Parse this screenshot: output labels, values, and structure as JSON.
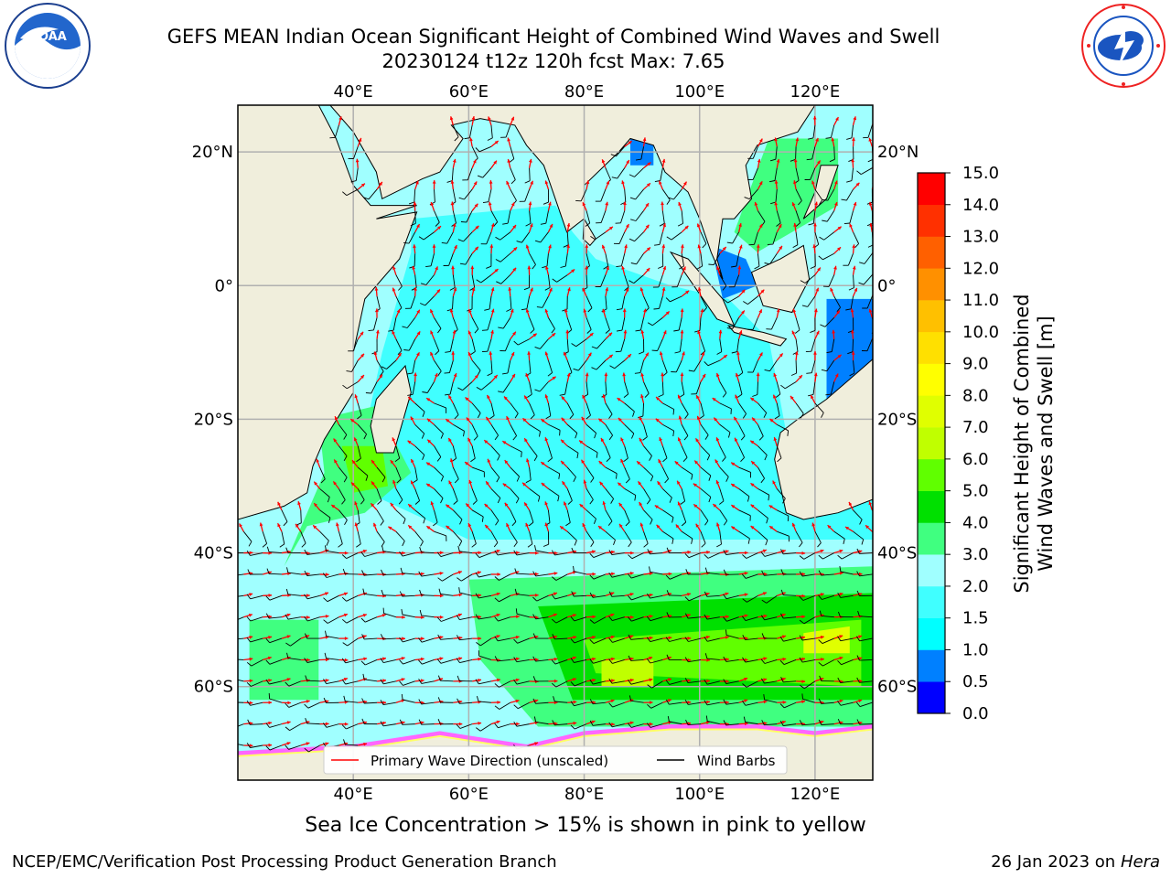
{
  "title": {
    "line1": "GEFS MEAN Indian Ocean Significant Height of Combined Wind Waves and Swell",
    "line2": "20230124 t12z 120h fcst   Max: 7.65"
  },
  "map": {
    "lon_range": [
      20,
      130
    ],
    "lat_range": [
      -74,
      27
    ],
    "lon_ticks": [
      {
        "value": 40,
        "label": "40°E"
      },
      {
        "value": 60,
        "label": "60°E"
      },
      {
        "value": 80,
        "label": "80°E"
      },
      {
        "value": 100,
        "label": "100°E"
      },
      {
        "value": 120,
        "label": "120°E"
      }
    ],
    "lat_ticks": [
      {
        "value": 20,
        "label": "20°N"
      },
      {
        "value": 0,
        "label": "0°"
      },
      {
        "value": -20,
        "label": "20°S"
      },
      {
        "value": -40,
        "label": "40°S"
      },
      {
        "value": -60,
        "label": "60°S"
      }
    ],
    "gridlines": true,
    "land_color": "#f0eedc",
    "wave_arrow_color": "#ff0000",
    "wind_barb_color": "#000000",
    "sea_ice_colors": [
      "#ff66ff",
      "#ffff66"
    ]
  },
  "legend": {
    "placement": "bottom-center",
    "items": [
      {
        "label": "Primary Wave Direction (unscaled)",
        "color": "#ff0000"
      },
      {
        "label": "Wind Barbs",
        "color": "#000000"
      }
    ]
  },
  "colorbar": {
    "label_line1": "Significant Height of Combined",
    "label_line2": "Wind Waves and Swell [m]",
    "levels": [
      0.0,
      0.5,
      1.0,
      1.5,
      2.0,
      3.0,
      4.0,
      5.0,
      6.0,
      7.0,
      8.0,
      9.0,
      10.0,
      11.0,
      12.0,
      13.0,
      14.0,
      15.0
    ],
    "tick_labels": [
      "0.0",
      "0.5",
      "1.0",
      "1.5",
      "2.0",
      "3.0",
      "4.0",
      "5.0",
      "6.0",
      "7.0",
      "8.0",
      "9.0",
      "10.0",
      "11.0",
      "12.0",
      "13.0",
      "14.0",
      "15.0"
    ],
    "colors": [
      "#0000ff",
      "#0080ff",
      "#00ffff",
      "#40ffff",
      "#a0ffff",
      "#40ff80",
      "#00e000",
      "#60ff00",
      "#c0ff00",
      "#e0ff00",
      "#ffff00",
      "#ffe000",
      "#ffc000",
      "#ff9000",
      "#ff6000",
      "#ff3000",
      "#ff0000"
    ]
  },
  "chart_data": {
    "type": "heatmap",
    "variable": "Significant Height of Combined Wind Waves and Swell",
    "units": "m",
    "max": 7.65,
    "regions": [
      {
        "value": 1.75,
        "polygon": [
          [
            50,
            10
          ],
          [
            75,
            12
          ],
          [
            78,
            8
          ],
          [
            82,
            4
          ],
          [
            95,
            0
          ],
          [
            105,
            -2
          ],
          [
            112,
            -8
          ],
          [
            115,
            -22
          ],
          [
            120,
            -25
          ],
          [
            130,
            -28
          ],
          [
            130,
            -40
          ],
          [
            60,
            -38
          ],
          [
            40,
            -30
          ],
          [
            45,
            -10
          ],
          [
            50,
            5
          ]
        ]
      },
      {
        "value": 2.5,
        "polygon": [
          [
            20,
            -38
          ],
          [
            130,
            -38
          ],
          [
            130,
            -72
          ],
          [
            20,
            -72
          ]
        ]
      },
      {
        "value": 3.5,
        "polygon": [
          [
            60,
            -44
          ],
          [
            130,
            -42
          ],
          [
            130,
            -66
          ],
          [
            72,
            -66
          ],
          [
            62,
            -56
          ]
        ]
      },
      {
        "value": 4.5,
        "polygon": [
          [
            72,
            -48
          ],
          [
            130,
            -46
          ],
          [
            130,
            -62
          ],
          [
            78,
            -62
          ]
        ]
      },
      {
        "value": 5.5,
        "polygon": [
          [
            80,
            -53
          ],
          [
            128,
            -50
          ],
          [
            128,
            -60
          ],
          [
            82,
            -58
          ]
        ]
      },
      {
        "value": 6.5,
        "polygon": [
          [
            83,
            -56
          ],
          [
            92,
            -56
          ],
          [
            92,
            -60
          ],
          [
            83,
            -60
          ]
        ]
      },
      {
        "value": 7.5,
        "polygon": [
          [
            118,
            -52
          ],
          [
            126,
            -51
          ],
          [
            126,
            -55
          ],
          [
            118,
            -55
          ]
        ]
      },
      {
        "value": 3.5,
        "polygon": [
          [
            34,
            -20
          ],
          [
            44,
            -18
          ],
          [
            50,
            -28
          ],
          [
            42,
            -34
          ],
          [
            32,
            -36
          ],
          [
            28,
            -42
          ],
          [
            35,
            -28
          ]
        ]
      },
      {
        "value": 5.5,
        "polygon": [
          [
            38,
            -24
          ],
          [
            45,
            -24
          ],
          [
            46,
            -30
          ],
          [
            40,
            -31
          ]
        ]
      },
      {
        "value": 3.5,
        "polygon": [
          [
            22,
            -50
          ],
          [
            34,
            -50
          ],
          [
            34,
            -62
          ],
          [
            22,
            -62
          ]
        ]
      },
      {
        "value": 3.5,
        "polygon": [
          [
            112,
            22
          ],
          [
            124,
            22
          ],
          [
            124,
            12
          ],
          [
            110,
            5
          ],
          [
            106,
            8
          ]
        ]
      },
      {
        "value": 0.75,
        "polygon": [
          [
            122,
            -2
          ],
          [
            130,
            -2
          ],
          [
            130,
            -18
          ],
          [
            122,
            -18
          ]
        ]
      },
      {
        "value": 0.75,
        "polygon": [
          [
            102,
            6
          ],
          [
            108,
            4
          ],
          [
            110,
            0
          ],
          [
            104,
            -2
          ]
        ]
      },
      {
        "value": 0.75,
        "polygon": [
          [
            88,
            22
          ],
          [
            92,
            22
          ],
          [
            92,
            18
          ],
          [
            88,
            18
          ]
        ]
      }
    ]
  },
  "caption": "Sea Ice Concentration > 15% is shown in pink to yellow",
  "footer": {
    "left": "NCEP/EMC/Verification Post Processing Product Generation Branch",
    "right_date": "26 Jan 2023 on ",
    "right_host": "Hera"
  }
}
